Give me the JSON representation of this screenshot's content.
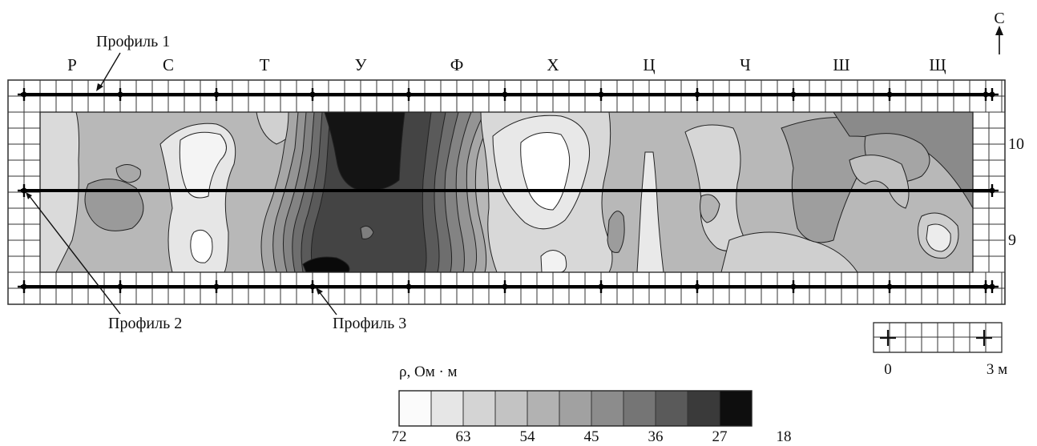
{
  "north": {
    "label": "С"
  },
  "columns": [
    "Р",
    "С",
    "Т",
    "У",
    "Ф",
    "Х",
    "Ц",
    "Ч",
    "Ш",
    "Щ"
  ],
  "row_labels": [
    "10",
    "9"
  ],
  "profiles": [
    {
      "label": "Профиль 1"
    },
    {
      "label": "Профиль 2"
    },
    {
      "label": "Профиль 3"
    }
  ],
  "legend": {
    "title": "ρ, Ом · м",
    "tick_labels": [
      "72",
      "63",
      "54",
      "45",
      "36",
      "27",
      "18"
    ],
    "colors": [
      "#fbfbfb",
      "#e6e6e6",
      "#d4d4d4",
      "#c3c3c3",
      "#b2b2b2",
      "#a1a1a1",
      "#8c8c8c",
      "#757575",
      "#5a5a5a",
      "#3a3a3a",
      "#0e0e0e"
    ]
  },
  "scale_bar": {
    "start_label": "0",
    "end_label": "3 м"
  }
}
